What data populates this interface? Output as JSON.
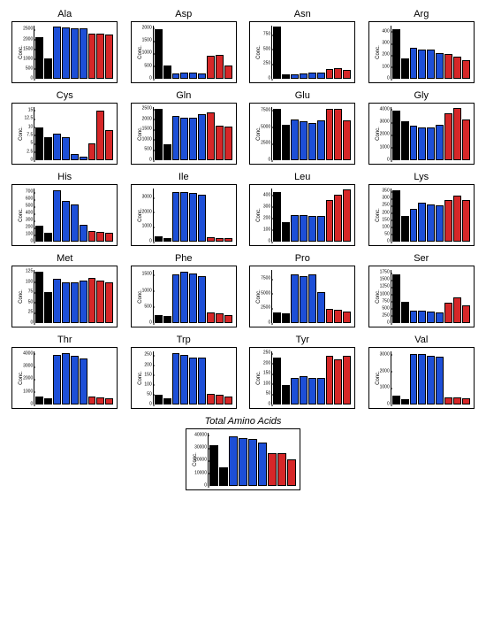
{
  "colors": {
    "black": "#000000",
    "blue": "#1d4fd7",
    "red": "#d62728"
  },
  "group_colors": [
    "black",
    "black",
    "blue",
    "blue",
    "blue",
    "blue",
    "red",
    "red",
    "red"
  ],
  "ylabel": "Conc.",
  "total_title": "Total Amino Acids",
  "panels": [
    {
      "title": "Ala",
      "ymax": 2700,
      "ticks": [
        0,
        500,
        1000,
        1500,
        2000,
        2500
      ],
      "values": [
        2100,
        1050,
        2650,
        2600,
        2550,
        2550,
        2300,
        2300,
        2250
      ]
    },
    {
      "title": "Asp",
      "ymax": 2100,
      "ticks": [
        0,
        500,
        1000,
        1500,
        2000
      ],
      "values": [
        1950,
        530,
        200,
        250,
        230,
        200,
        920,
        950,
        520
      ]
    },
    {
      "title": "Asn",
      "ymax": 900,
      "ticks": [
        0,
        250,
        500,
        750
      ],
      "values": [
        880,
        80,
        80,
        90,
        100,
        100,
        170,
        180,
        150
      ]
    },
    {
      "title": "Arg",
      "ymax": 450,
      "ticks": [
        0,
        100,
        200,
        300,
        400
      ],
      "values": [
        420,
        170,
        260,
        250,
        250,
        220,
        210,
        190,
        160
      ]
    },
    {
      "title": "Cys",
      "ymax": 16,
      "ticks": [
        0,
        2.5,
        5.0,
        7.5,
        10.0,
        12.5,
        15.0
      ],
      "values": [
        10,
        7,
        8,
        7,
        2,
        1,
        5,
        15,
        9
      ]
    },
    {
      "title": "Gln",
      "ymax": 2600,
      "ticks": [
        0,
        500,
        1000,
        1500,
        2000,
        2500
      ],
      "values": [
        2500,
        800,
        2150,
        2100,
        2100,
        2250,
        2350,
        1700,
        1650
      ]
    },
    {
      "title": "Glu",
      "ymax": 8000,
      "ticks": [
        0,
        2500,
        5000,
        7500
      ],
      "values": [
        7800,
        5300,
        6100,
        5900,
        5600,
        6000,
        7800,
        7700,
        6000
      ]
    },
    {
      "title": "Gly",
      "ymax": 4200,
      "ticks": [
        0,
        1000,
        2000,
        3000,
        4000
      ],
      "values": [
        3900,
        3100,
        2700,
        2600,
        2600,
        2800,
        3700,
        4100,
        3200
      ]
    },
    {
      "title": "His",
      "ymax": 750,
      "ticks": [
        0,
        100,
        200,
        300,
        400,
        500,
        600,
        700
      ],
      "values": [
        230,
        130,
        720,
        570,
        520,
        240,
        150,
        140,
        130
      ]
    },
    {
      "title": "Ile",
      "ymax": 3600,
      "ticks": [
        0,
        1000,
        2000,
        3000
      ],
      "values": [
        380,
        270,
        3350,
        3350,
        3300,
        3200,
        300,
        250,
        220
      ]
    },
    {
      "title": "Leu",
      "ymax": 460,
      "ticks": [
        0,
        100,
        200,
        300,
        400
      ],
      "values": [
        430,
        170,
        230,
        230,
        220,
        220,
        360,
        410,
        450
      ]
    },
    {
      "title": "Lys",
      "ymax": 370,
      "ticks": [
        0,
        50,
        100,
        150,
        200,
        250,
        300,
        350
      ],
      "values": [
        360,
        180,
        230,
        270,
        260,
        250,
        290,
        320,
        290
      ]
    },
    {
      "title": "Met",
      "ymax": 130,
      "ticks": [
        0,
        25,
        50,
        75,
        100,
        125
      ],
      "values": [
        125,
        75,
        108,
        100,
        100,
        105,
        110,
        105,
        100
      ]
    },
    {
      "title": "Phe",
      "ymax": 1650,
      "ticks": [
        0,
        500,
        1000,
        1500
      ],
      "values": [
        260,
        220,
        1500,
        1600,
        1550,
        1450,
        320,
        300,
        240
      ]
    },
    {
      "title": "Pro",
      "ymax": 9000,
      "ticks": [
        0,
        2500,
        5000,
        7500
      ],
      "values": [
        1800,
        1600,
        8300,
        8000,
        8300,
        5200,
        2400,
        2300,
        2000
      ]
    },
    {
      "title": "Ser",
      "ymax": 1850,
      "ticks": [
        0,
        250,
        500,
        750,
        1000,
        1250,
        1500,
        1750
      ],
      "values": [
        1700,
        750,
        430,
        430,
        400,
        380,
        700,
        900,
        620
      ]
    },
    {
      "title": "Thr",
      "ymax": 4200,
      "ticks": [
        0,
        1000,
        2000,
        3000,
        4000
      ],
      "values": [
        620,
        480,
        3950,
        4050,
        3850,
        3650,
        600,
        570,
        500
      ]
    },
    {
      "title": "Trp",
      "ymax": 270,
      "ticks": [
        0,
        50,
        100,
        150,
        200,
        250
      ],
      "values": [
        50,
        30,
        260,
        250,
        240,
        240,
        55,
        50,
        40
      ]
    },
    {
      "title": "Tyr",
      "ymax": 260,
      "ticks": [
        0,
        50,
        100,
        150,
        200,
        250
      ],
      "values": [
        230,
        95,
        130,
        140,
        130,
        130,
        240,
        220,
        240
      ]
    },
    {
      "title": "Val",
      "ymax": 3200,
      "ticks": [
        0,
        1000,
        2000,
        3000
      ],
      "values": [
        520,
        340,
        3050,
        3050,
        2950,
        2900,
        450,
        420,
        380
      ]
    }
  ],
  "total": {
    "ymax": 42000,
    "ticks": [
      0,
      10000,
      20000,
      30000,
      40000
    ],
    "values": [
      32000,
      15000,
      39000,
      38000,
      37000,
      34000,
      26000,
      26000,
      21000
    ]
  }
}
